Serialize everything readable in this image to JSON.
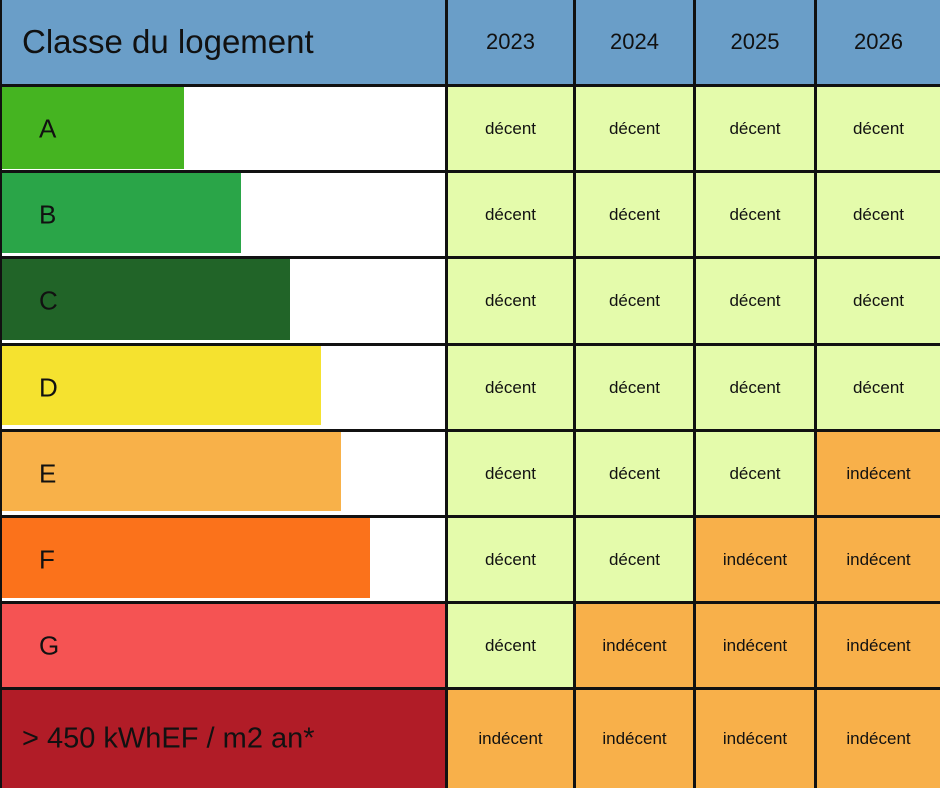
{
  "header": {
    "title": "Classe du logement",
    "years": [
      "2023",
      "2024",
      "2025",
      "2026"
    ]
  },
  "colors": {
    "header_bg": "#6a9ec8",
    "decent_bg": "#e4fbab",
    "indecent_bg": "#f8b04a",
    "class_A": "#45b421",
    "class_B": "#2aa548",
    "class_C": "#216428",
    "class_D": "#f5e22f",
    "class_E": "#f8b149",
    "class_F": "#fb721b",
    "class_G": "#f55353",
    "class_last": "#b11c27"
  },
  "rows": [
    {
      "label": "A",
      "bar_fraction": 0.41,
      "color": "#45b421",
      "statuses": [
        "décent",
        "décent",
        "décent",
        "décent"
      ]
    },
    {
      "label": "B",
      "bar_fraction": 0.54,
      "color": "#2aa548",
      "statuses": [
        "décent",
        "décent",
        "décent",
        "décent"
      ]
    },
    {
      "label": "C",
      "bar_fraction": 0.65,
      "color": "#216428",
      "statuses": [
        "décent",
        "décent",
        "décent",
        "décent"
      ]
    },
    {
      "label": "D",
      "bar_fraction": 0.72,
      "color": "#f5e22f",
      "statuses": [
        "décent",
        "décent",
        "décent",
        "décent"
      ]
    },
    {
      "label": "E",
      "bar_fraction": 0.765,
      "color": "#f8b149",
      "statuses": [
        "décent",
        "décent",
        "décent",
        "indécent"
      ]
    },
    {
      "label": "F",
      "bar_fraction": 0.83,
      "color": "#fb721b",
      "statuses": [
        "décent",
        "décent",
        "indécent",
        "indécent"
      ]
    },
    {
      "label": "G",
      "bar_fraction": 1.0,
      "color": "#f55353",
      "statuses": [
        "décent",
        "indécent",
        "indécent",
        "indécent"
      ]
    },
    {
      "label": "> 450 kWhEF / m2 an*",
      "bar_fraction": 1.0,
      "color": "#b11c27",
      "statuses": [
        "indécent",
        "indécent",
        "indécent",
        "indécent"
      ]
    }
  ]
}
